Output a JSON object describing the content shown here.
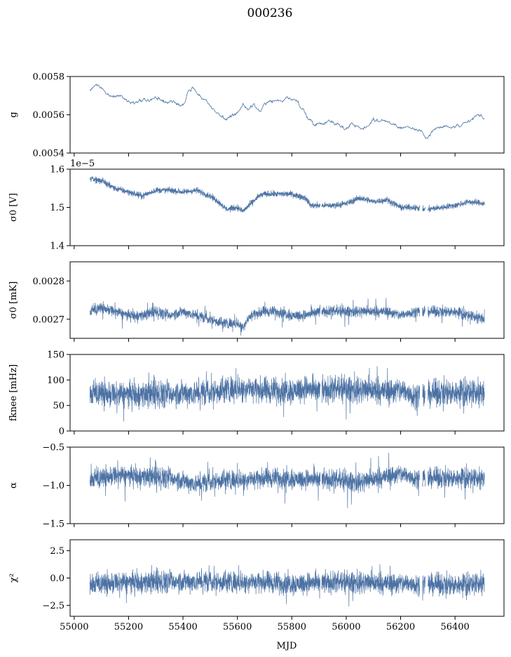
{
  "figure": {
    "title": "000236",
    "xlabel": "MJD"
  },
  "colors": {
    "series": "#4c72a4",
    "frame": "#000000",
    "background": "#ffffff"
  },
  "chart_data": [
    {
      "type": "line",
      "title": "",
      "ylabel": "g",
      "ylim": [
        0.0054,
        0.0058
      ],
      "xlim": [
        54985,
        56580
      ],
      "yticks": [
        0.0054,
        0.0056,
        0.0058
      ],
      "ytick_labels": [
        "0.0054",
        "0.0056",
        "0.0058"
      ],
      "offset_text": "",
      "x_range": [
        55058,
        56508
      ],
      "series_style": "thin",
      "noise": 1e-05,
      "spikes": 0,
      "x": [
        55058,
        55080,
        55100,
        55120,
        55140,
        55160,
        55180,
        55200,
        55220,
        55250,
        55280,
        55300,
        55320,
        55340,
        55360,
        55380,
        55400,
        55420,
        55440,
        55460,
        55480,
        55500,
        55520,
        55540,
        55560,
        55580,
        55600,
        55620,
        55640,
        55660,
        55680,
        55700,
        55720,
        55740,
        55760,
        55780,
        55800,
        55820,
        55840,
        55860,
        55880,
        55900,
        55920,
        55940,
        55960,
        55980,
        56000,
        56020,
        56040,
        56060,
        56080,
        56100,
        56120,
        56140,
        56160,
        56180,
        56200,
        56220,
        56240,
        56260,
        56280,
        56300,
        56320,
        56340,
        56360,
        56380,
        56400,
        56420,
        56440,
        56460,
        56480,
        56508
      ],
      "y": [
        0.00573,
        0.00575,
        0.00574,
        0.00571,
        0.00569,
        0.0057,
        0.00569,
        0.00567,
        0.00566,
        0.00568,
        0.00567,
        0.00569,
        0.00568,
        0.00566,
        0.00567,
        0.00566,
        0.00565,
        0.00573,
        0.00574,
        0.0057,
        0.00568,
        0.00565,
        0.00562,
        0.00559,
        0.00558,
        0.00559,
        0.0056,
        0.00566,
        0.00563,
        0.00565,
        0.00562,
        0.00565,
        0.00567,
        0.00568,
        0.00567,
        0.00569,
        0.00568,
        0.00567,
        0.00563,
        0.00558,
        0.00556,
        0.00555,
        0.00556,
        0.00557,
        0.00556,
        0.00554,
        0.00552,
        0.00556,
        0.00554,
        0.00553,
        0.00554,
        0.00558,
        0.00556,
        0.00557,
        0.00556,
        0.00555,
        0.00553,
        0.00554,
        0.00553,
        0.00552,
        0.00551,
        0.00548,
        0.00552,
        0.00553,
        0.00554,
        0.00553,
        0.00554,
        0.00554,
        0.00555,
        0.00557,
        0.0056,
        0.00558
      ]
    },
    {
      "type": "line",
      "title": "",
      "ylabel": "σ0 [V]",
      "ylim": [
        1.4,
        1.6
      ],
      "xlim": [
        54985,
        56580
      ],
      "yticks": [
        1.4,
        1.5,
        1.6
      ],
      "ytick_labels": [
        "1.4",
        "1.5",
        "1.6"
      ],
      "offset_text": "1e−5",
      "x_range": [
        55058,
        56508
      ],
      "series_style": "band",
      "noise": 0.007,
      "spikes": 0,
      "x": [
        55058,
        55100,
        55150,
        55200,
        55250,
        55300,
        55350,
        55400,
        55450,
        55500,
        55530,
        55560,
        55600,
        55620,
        55650,
        55680,
        55700,
        55750,
        55800,
        55850,
        55870,
        55900,
        55950,
        56000,
        56050,
        56100,
        56150,
        56200,
        56250,
        56280,
        56300,
        56350,
        56400,
        56450,
        56508
      ],
      "y": [
        1.575,
        1.57,
        1.55,
        1.54,
        1.53,
        1.545,
        1.545,
        1.54,
        1.545,
        1.53,
        1.515,
        1.495,
        1.5,
        1.49,
        1.51,
        1.53,
        1.535,
        1.535,
        1.535,
        1.525,
        1.505,
        1.505,
        1.505,
        1.51,
        1.525,
        1.515,
        1.52,
        1.5,
        1.5,
        1.495,
        1.495,
        1.5,
        1.505,
        1.515,
        1.51
      ]
    },
    {
      "type": "line",
      "title": "",
      "ylabel": "σ0 [mK]",
      "ylim": [
        0.00265,
        0.00285
      ],
      "xlim": [
        54985,
        56580
      ],
      "yticks": [
        0.0027,
        0.0028
      ],
      "ytick_labels": [
        "0.0027",
        "0.0028"
      ],
      "offset_text": "",
      "x_range": [
        55058,
        56508
      ],
      "series_style": "band",
      "noise": 1.2e-05,
      "spikes": 3e-05,
      "x": [
        55058,
        55100,
        55150,
        55200,
        55250,
        55300,
        55350,
        55400,
        55450,
        55500,
        55550,
        55600,
        55620,
        55650,
        55700,
        55750,
        55800,
        55850,
        55900,
        55950,
        56000,
        56050,
        56100,
        56150,
        56200,
        56250,
        56300,
        56350,
        56400,
        56450,
        56508
      ],
      "y": [
        0.00272,
        0.00273,
        0.00272,
        0.00271,
        0.00271,
        0.00272,
        0.00271,
        0.00272,
        0.00271,
        0.0027,
        0.00269,
        0.00269,
        0.00268,
        0.00271,
        0.00272,
        0.00272,
        0.00271,
        0.00271,
        0.00272,
        0.00272,
        0.00272,
        0.00272,
        0.00272,
        0.00272,
        0.00271,
        0.00272,
        0.00272,
        0.00272,
        0.00272,
        0.00271,
        0.0027
      ]
    },
    {
      "type": "line",
      "title": "",
      "ylabel": "fknee [mHz]",
      "ylim": [
        0,
        150
      ],
      "xlim": [
        54985,
        56580
      ],
      "yticks": [
        0,
        50,
        100,
        150
      ],
      "ytick_labels": [
        "0",
        "50",
        "100",
        "150"
      ],
      "offset_text": "",
      "x_range": [
        55058,
        56508
      ],
      "series_style": "band",
      "noise": 22,
      "spikes": 35,
      "x": [
        55058,
        55100,
        55150,
        55200,
        55250,
        55300,
        55350,
        55400,
        55450,
        55500,
        55550,
        55600,
        55650,
        55700,
        55750,
        55800,
        55850,
        55900,
        55950,
        56000,
        56050,
        56100,
        56150,
        56200,
        56250,
        56300,
        56350,
        56400,
        56450,
        56508
      ],
      "y": [
        72,
        74,
        70,
        72,
        72,
        73,
        72,
        75,
        74,
        77,
        82,
        85,
        83,
        78,
        80,
        80,
        83,
        78,
        81,
        82,
        80,
        80,
        78,
        80,
        70,
        72,
        76,
        76,
        76,
        73
      ]
    },
    {
      "type": "line",
      "title": "",
      "ylabel": "α",
      "ylim": [
        -1.5,
        -0.5
      ],
      "xlim": [
        54985,
        56580
      ],
      "yticks": [
        -1.5,
        -1.0,
        -0.5
      ],
      "ytick_labels": [
        "−1.5",
        "−1.0",
        "−0.5"
      ],
      "offset_text": "",
      "x_range": [
        55058,
        56508
      ],
      "series_style": "band",
      "noise": 0.11,
      "spikes": 0.25,
      "x": [
        55058,
        55150,
        55250,
        55350,
        55450,
        55550,
        55650,
        55750,
        55850,
        55950,
        56050,
        56150,
        56200,
        56250,
        56350,
        56450,
        56508
      ],
      "y": [
        -0.93,
        -0.87,
        -0.88,
        -0.9,
        -0.98,
        -0.92,
        -0.92,
        -0.9,
        -0.92,
        -0.93,
        -0.96,
        -0.88,
        -0.85,
        -0.9,
        -0.9,
        -0.9,
        -0.92
      ]
    },
    {
      "type": "line",
      "title": "",
      "ylabel": "χ²",
      "ylim": [
        -3.5,
        3.5
      ],
      "xlim": [
        54985,
        56580
      ],
      "yticks": [
        -2.5,
        0.0,
        2.5
      ],
      "ytick_labels": [
        "−2.5",
        "0.0",
        "2.5"
      ],
      "offset_text": "",
      "x_range": [
        55058,
        56508
      ],
      "series_style": "band",
      "noise": 0.85,
      "spikes": 1.2,
      "x": [
        55058,
        55200,
        55400,
        55600,
        55800,
        56000,
        56200,
        56400,
        56508
      ],
      "y": [
        -0.6,
        -0.4,
        -0.3,
        -0.3,
        -0.5,
        -0.4,
        -0.5,
        -0.6,
        -0.5
      ]
    }
  ],
  "xaxis": {
    "ticks": [
      55000,
      55200,
      55400,
      55600,
      55800,
      56000,
      56200,
      56400
    ],
    "tick_labels": [
      "55000",
      "55200",
      "55400",
      "55600",
      "55800",
      "56000",
      "56200",
      "56400"
    ]
  }
}
